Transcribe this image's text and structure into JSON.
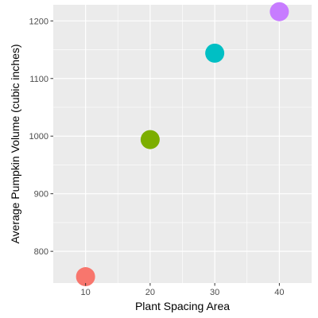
{
  "chart_data": {
    "type": "scatter",
    "title": "",
    "xlabel": "Plant Spacing Area",
    "ylabel": "Average Pumpkin Volume (cubic inches)",
    "xlim": [
      5,
      45
    ],
    "ylim": [
      745,
      1228
    ],
    "x_ticks": [
      10,
      20,
      30,
      40
    ],
    "y_ticks": [
      800,
      900,
      1000,
      1100,
      1200
    ],
    "grid": true,
    "legend": "none",
    "background_color": "#EBEBEB",
    "grid_color": "#FFFFFF",
    "points": [
      {
        "x": 10,
        "y": 756,
        "color": "#F8766D"
      },
      {
        "x": 20,
        "y": 994,
        "color": "#7CAE00"
      },
      {
        "x": 30,
        "y": 1144,
        "color": "#00BFC4"
      },
      {
        "x": 40,
        "y": 1216,
        "color": "#C77CFF"
      }
    ]
  }
}
